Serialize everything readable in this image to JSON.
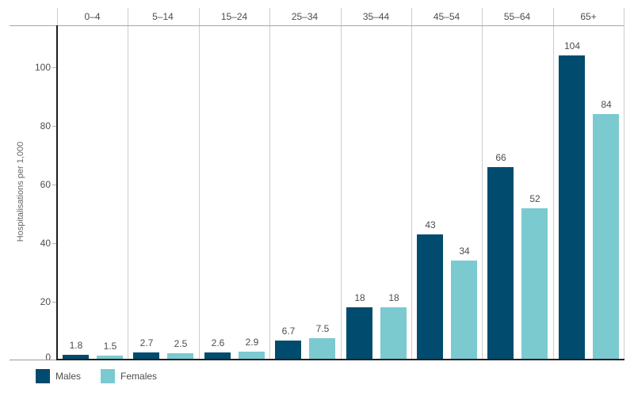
{
  "chart_data": {
    "type": "bar",
    "title": "",
    "categories": [
      "0–4",
      "5–14",
      "15–24",
      "25–34",
      "35–44",
      "45–54",
      "55–64",
      "65+"
    ],
    "series": [
      {
        "name": "Males",
        "color": "#004B6E",
        "values": [
          1.8,
          2.7,
          2.6,
          6.7,
          18,
          43,
          66,
          104
        ]
      },
      {
        "name": "Females",
        "color": "#7ACAD0",
        "values": [
          1.5,
          2.5,
          2.9,
          7.5,
          18,
          34,
          52,
          84
        ]
      }
    ],
    "ylabel": "Hospitalisations per 1,000",
    "yticks": [
      0,
      20,
      40,
      60,
      80,
      100
    ],
    "ylim": [
      0,
      114
    ],
    "grid": "vertical column separators only, no horizontal gridlines",
    "value_labels": "above bars",
    "legend_position": "bottom-left"
  }
}
